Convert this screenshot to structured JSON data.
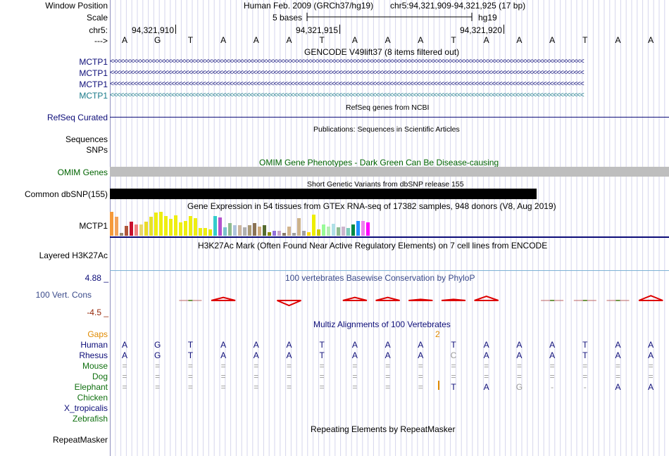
{
  "header": {
    "window_position_label": "Window Position",
    "assembly_title": "Human Feb. 2009 (GRCh37/hg19)",
    "position": "chr5:94,321,909-94,321,925 (17 bp)",
    "scale_label": "Scale",
    "scale_text": "5 bases",
    "scale_db": "hg19",
    "chrom_label": "chr5:",
    "strand_label": "--->",
    "coords": [
      "94,321,910",
      "94,321,915",
      "94,321,920"
    ]
  },
  "bases": [
    "A",
    "G",
    "T",
    "A",
    "A",
    "A",
    "T",
    "A",
    "A",
    "A",
    "T",
    "A",
    "A",
    "A",
    "T",
    "A",
    "A"
  ],
  "gencode": {
    "title": "GENCODE V49lift37 (8 items filtered out)",
    "rows": [
      {
        "label": "MCTP1",
        "color": "#0c0c78"
      },
      {
        "label": "MCTP1",
        "color": "#0c0c78"
      },
      {
        "label": "MCTP1",
        "color": "#0c0c78"
      },
      {
        "label": "MCTP1",
        "color": "#1a7a8a"
      }
    ],
    "arrow_text": "<<<<<<<<<<<<<<<<<<<<<<<<<<<<<<<<<<<<<<<<<<<<<<<<<<<<<<<<<<<<<<<<<<<<<<<<<<<<<<<<<<<<<<<<<<<<<<<<<<<<<<<<<<<<<<<<<<<<<<<<<<<<<<<<<<<<<<<<<<<"
  },
  "refseq": {
    "title": "RefSeq genes from NCBI",
    "label": "RefSeq Curated"
  },
  "publications": {
    "title": "Publications: Sequences in Scientific Articles",
    "labels": [
      "Sequences",
      "SNPs"
    ]
  },
  "omim": {
    "title": "OMIM Gene Phenotypes - Dark Green Can Be Disease-causing",
    "label": "OMIM Genes"
  },
  "dbsnp": {
    "title": "Short Genetic Variants from dbSNP release 155",
    "label": "Common dbSNP(155)"
  },
  "gtex": {
    "title": "Gene Expression in 54 tissues from GTEx RNA-seq of 17382 samples, 948 donors (V8, Aug 2019)",
    "label": "MCTP1",
    "bars": [
      {
        "h": 0.97,
        "c": "#f59a3a"
      },
      {
        "h": 0.78,
        "c": "#f3a35a"
      },
      {
        "h": 0.1,
        "c": "#9a8a70"
      },
      {
        "h": 0.4,
        "c": "#b0553a"
      },
      {
        "h": 0.58,
        "c": "#c8102e"
      },
      {
        "h": 0.45,
        "c": "#f08080"
      },
      {
        "h": 0.45,
        "c": "#e9d86a"
      },
      {
        "h": 0.58,
        "c": "#eadb2a"
      },
      {
        "h": 0.78,
        "c": "#e6e22a"
      },
      {
        "h": 0.93,
        "c": "#eeee11"
      },
      {
        "h": 0.97,
        "c": "#eeee11"
      },
      {
        "h": 0.8,
        "c": "#eeee11"
      },
      {
        "h": 0.68,
        "c": "#eeee11"
      },
      {
        "h": 0.82,
        "c": "#eeee11"
      },
      {
        "h": 0.55,
        "c": "#eeee11"
      },
      {
        "h": 0.6,
        "c": "#eeee11"
      },
      {
        "h": 0.8,
        "c": "#eeee11"
      },
      {
        "h": 0.72,
        "c": "#eeee11"
      },
      {
        "h": 0.3,
        "c": "#eeee11"
      },
      {
        "h": 0.3,
        "c": "#eeee11"
      },
      {
        "h": 0.25,
        "c": "#e6e600"
      },
      {
        "h": 0.8,
        "c": "#33cccc"
      },
      {
        "h": 0.75,
        "c": "#b452cd"
      },
      {
        "h": 0.35,
        "c": "#7ac5cd"
      },
      {
        "h": 0.5,
        "c": "#8fbc8f"
      },
      {
        "h": 0.42,
        "c": "#b0c4de"
      },
      {
        "h": 0.42,
        "c": "#cdb79e"
      },
      {
        "h": 0.35,
        "c": "#b0b0b0"
      },
      {
        "h": 0.42,
        "c": "#ab9b78"
      },
      {
        "h": 0.5,
        "c": "#8b7355"
      },
      {
        "h": 0.38,
        "c": "#cdaa7d"
      },
      {
        "h": 0.42,
        "c": "#556b2f"
      },
      {
        "h": 0.15,
        "c": "#8b8b00"
      },
      {
        "h": 0.2,
        "c": "#9370db"
      },
      {
        "h": 0.2,
        "c": "#c8a2c8"
      },
      {
        "h": 0.12,
        "c": "#8a7a6a"
      },
      {
        "h": 0.38,
        "c": "#d2b48c"
      },
      {
        "h": 0.12,
        "c": "#a0a0a0"
      },
      {
        "h": 0.7,
        "c": "#cdb38b"
      },
      {
        "h": 0.2,
        "c": "#a0a0a0"
      },
      {
        "h": 0.15,
        "c": "#ffd700"
      },
      {
        "h": 0.85,
        "c": "#eeee00"
      },
      {
        "h": 0.25,
        "c": "#cdcd00"
      },
      {
        "h": 0.45,
        "c": "#98fb98"
      },
      {
        "h": 0.38,
        "c": "#b4eeb4"
      },
      {
        "h": 0.48,
        "c": "#b0e0e6"
      },
      {
        "h": 0.35,
        "c": "#8fbc8f"
      },
      {
        "h": 0.38,
        "c": "#cdb5cd"
      },
      {
        "h": 0.3,
        "c": "#7fcdbb"
      },
      {
        "h": 0.45,
        "c": "#008b45"
      },
      {
        "h": 0.6,
        "c": "#1e90ff"
      },
      {
        "h": 0.6,
        "c": "#ee82ee"
      },
      {
        "h": 0.55,
        "c": "#ff00ff"
      }
    ]
  },
  "h3k27ac": {
    "title": "H3K27Ac Mark (Often Found Near Active Regulatory Elements) on 7 cell lines from ENCODE",
    "label": "Layered H3K27Ac"
  },
  "cons": {
    "title": "100 vertebrates Basewise Conservation by PhyloP",
    "label": "100 Vert. Cons",
    "max_label": "4.88 _",
    "min_label": "-4.5 _",
    "values": [
      0,
      0,
      0.15,
      0.55,
      0,
      -0.9,
      0,
      0.55,
      0.55,
      0.2,
      0.2,
      0.75,
      0,
      0.1,
      0.05,
      0.05,
      0.85
    ]
  },
  "multiz": {
    "title": "Multiz Alignments of 100 Vertebrates",
    "gaps_label": "Gaps",
    "gap_marker": "2",
    "species": [
      {
        "name": "Human",
        "color": "#0c0c78",
        "seq": [
          "A",
          "G",
          "T",
          "A",
          "A",
          "A",
          "T",
          "A",
          "A",
          "A",
          "T",
          "A",
          "A",
          "A",
          "T",
          "A",
          "A"
        ]
      },
      {
        "name": "Rhesus",
        "color": "#0c0c78",
        "seq": [
          "A",
          "G",
          "T",
          "A",
          "A",
          "A",
          "T",
          "A",
          "A",
          "A",
          "C",
          "A",
          "A",
          "A",
          "T",
          "A",
          "A"
        ]
      },
      {
        "name": "Mouse",
        "color": "#0f6f0f",
        "seq": [
          "=",
          "=",
          "=",
          "=",
          "=",
          "=",
          "=",
          "=",
          "=",
          "=",
          "=",
          "=",
          "=",
          "=",
          "=",
          "=",
          "="
        ]
      },
      {
        "name": "Dog",
        "color": "#0f6f0f",
        "seq": [
          "=",
          "=",
          "=",
          "=",
          "=",
          "=",
          "=",
          "=",
          "=",
          "=",
          "=",
          "=",
          "=",
          "=",
          "=",
          "=",
          "="
        ]
      },
      {
        "name": "Elephant",
        "color": "#0f6f0f",
        "seq": [
          "=",
          "=",
          "=",
          "=",
          "=",
          "=",
          "=",
          "=",
          "=",
          "=",
          "T",
          "A",
          "G",
          "-",
          "-",
          "A",
          "A"
        ]
      },
      {
        "name": "Chicken",
        "color": "#0f6f0f",
        "seq": []
      },
      {
        "name": "X_tropicalis",
        "color": "#0c0c78",
        "seq": []
      },
      {
        "name": "Zebrafish",
        "color": "#0f6f0f",
        "seq": []
      }
    ]
  },
  "repeatmasker": {
    "title": "Repeating Elements by RepeatMasker",
    "label": "RepeatMasker"
  }
}
